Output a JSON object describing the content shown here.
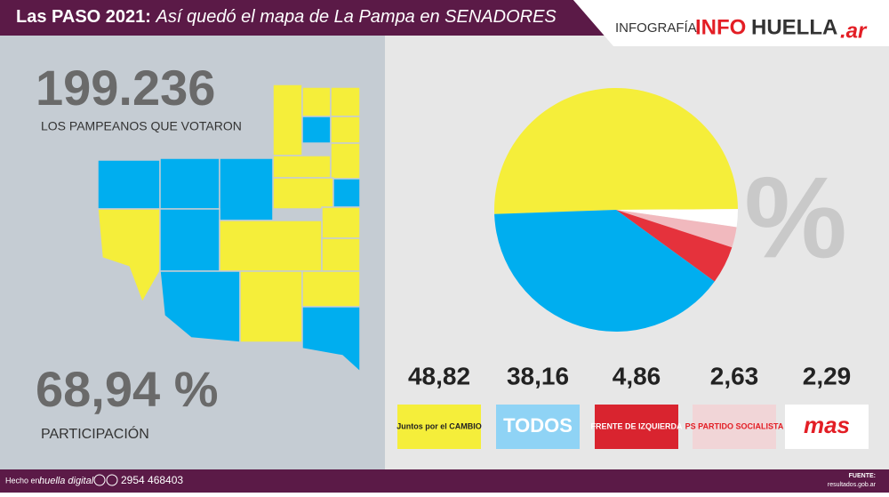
{
  "header": {
    "title_bold": "Las PASO 2021:",
    "title_italic": "Así quedó el mapa de La Pampa en SENADORES",
    "credit": "INFOGRAFÍA:",
    "logo_info": "INFO",
    "logo_huella": "HUELLA",
    "logo_ar": ".ar"
  },
  "stats": {
    "voters": "199.236",
    "voters_label": "LOS PAMPEANOS QUE VOTARON",
    "participation": "68,94 %",
    "participation_label": "PARTICIPACIÓN"
  },
  "percent_sign": "%",
  "chart_data": {
    "type": "pie",
    "categories": [
      "Juntos por el CAMBIO",
      "TODOS",
      "FRENTE DE IZQUIERDA",
      "PS PARTIDO SOCIALISTA",
      "mas"
    ],
    "values": [
      48.82,
      38.16,
      4.86,
      2.63,
      2.29
    ],
    "value_labels": [
      "48,82",
      "38,16",
      "4,86",
      "2,63",
      "2,29"
    ],
    "colors": [
      "#f5ee3a",
      "#00aeef",
      "#e5323c",
      "#f1b9be",
      "#ffffff"
    ]
  },
  "footer": {
    "made_in": "Hecho en:",
    "made_brand": "huella digital",
    "phone": "2954 468403",
    "source_label": "FUENTE:",
    "source": "resultados.gob.ar"
  }
}
